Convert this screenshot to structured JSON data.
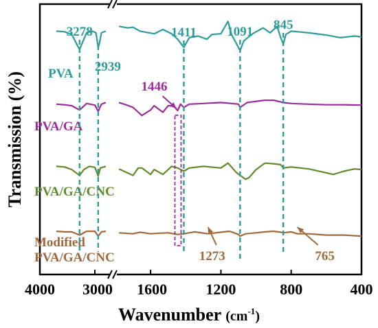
{
  "chart_data": {
    "type": "line",
    "title": "",
    "xlabel": "Wavenumber",
    "xlabel_unit": "(cm",
    "xlabel_unit_sup": "-1",
    "xlabel_unit_close": ")",
    "ylabel": "Transmission (%)",
    "x_axis_reversed": true,
    "x_axis_broken": true,
    "x_segments": [
      {
        "xlim": [
          4000,
          2700
        ]
      },
      {
        "xlim": [
          1800,
          400
        ]
      }
    ],
    "x_ticks": [
      {
        "value": 4000,
        "label": "4000"
      },
      {
        "value": 3000,
        "label": "3000"
      },
      {
        "value": 1600,
        "label": "1600"
      },
      {
        "value": 1200,
        "label": "1200"
      },
      {
        "value": 800,
        "label": "800"
      },
      {
        "value": 400,
        "label": "400"
      }
    ],
    "grid": false,
    "series": [
      {
        "name": "PVA",
        "color": "#2a9c98",
        "label_color": "#2a9c98",
        "baseline": 0.9,
        "points": [
          [
            3700,
            0
          ],
          [
            3550,
            -0.02
          ],
          [
            3420,
            -0.1
          ],
          [
            3300,
            -0.5
          ],
          [
            3278,
            -0.55
          ],
          [
            3250,
            -0.45
          ],
          [
            3150,
            -0.05
          ],
          [
            3050,
            0.0
          ],
          [
            2980,
            -0.05
          ],
          [
            2939,
            -0.5
          ],
          [
            2920,
            -0.4
          ],
          [
            2880,
            -0.05
          ],
          [
            2800,
            0.0
          ],
          [
            1780,
            0.15
          ],
          [
            1730,
            0.1
          ],
          [
            1700,
            0.12
          ],
          [
            1660,
            0.0
          ],
          [
            1580,
            -0.08
          ],
          [
            1530,
            0.05
          ],
          [
            1480,
            -0.08
          ],
          [
            1446,
            -0.25
          ],
          [
            1411,
            -0.5
          ],
          [
            1380,
            -0.2
          ],
          [
            1330,
            -0.15
          ],
          [
            1280,
            -0.25
          ],
          [
            1250,
            -0.1
          ],
          [
            1200,
            -0.08
          ],
          [
            1160,
            0.3
          ],
          [
            1140,
            -0.1
          ],
          [
            1110,
            -0.4
          ],
          [
            1091,
            -0.6
          ],
          [
            1070,
            -0.3
          ],
          [
            1020,
            -0.08
          ],
          [
            960,
            0.1
          ],
          [
            920,
            -0.05
          ],
          [
            880,
            0.15
          ],
          [
            860,
            -0.2
          ],
          [
            845,
            -0.4
          ],
          [
            830,
            -0.1
          ],
          [
            800,
            0.0
          ],
          [
            700,
            -0.05
          ],
          [
            600,
            -0.12
          ],
          [
            520,
            -0.2
          ],
          [
            440,
            -0.15
          ],
          [
            400,
            -0.18
          ]
        ]
      },
      {
        "name": "PVA/GA",
        "color": "#9b2a9b",
        "label_color": "#9b2a9b",
        "baseline": 0.63,
        "points": [
          [
            3700,
            0
          ],
          [
            3550,
            -0.02
          ],
          [
            3420,
            -0.05
          ],
          [
            3278,
            -0.18
          ],
          [
            3150,
            0.02
          ],
          [
            3000,
            -0.03
          ],
          [
            2939,
            -0.22
          ],
          [
            2880,
            0.0
          ],
          [
            2800,
            0.05
          ],
          [
            1780,
            0.05
          ],
          [
            1740,
            -0.02
          ],
          [
            1700,
            -0.1
          ],
          [
            1650,
            -0.35
          ],
          [
            1600,
            -0.18
          ],
          [
            1580,
            -0.05
          ],
          [
            1530,
            -0.25
          ],
          [
            1500,
            -0.05
          ],
          [
            1470,
            -0.05
          ],
          [
            1446,
            -0.2
          ],
          [
            1430,
            0.0
          ],
          [
            1411,
            -0.1
          ],
          [
            1380,
            0.0
          ],
          [
            1300,
            0.02
          ],
          [
            1200,
            0.05
          ],
          [
            1100,
            0.0
          ],
          [
            1091,
            -0.1
          ],
          [
            1050,
            0.05
          ],
          [
            950,
            0.12
          ],
          [
            900,
            0.12
          ],
          [
            845,
            0.05
          ],
          [
            800,
            0.02
          ],
          [
            700,
            0.0
          ],
          [
            600,
            -0.02
          ],
          [
            500,
            -0.02
          ],
          [
            400,
            -0.03
          ]
        ]
      },
      {
        "name": "PVA/GA/CNC",
        "color": "#5f8a2a",
        "label_color": "#5f8a2a",
        "baseline": 0.4,
        "points": [
          [
            3700,
            0
          ],
          [
            3550,
            -0.02
          ],
          [
            3420,
            -0.1
          ],
          [
            3300,
            -0.25
          ],
          [
            3278,
            -0.28
          ],
          [
            3200,
            -0.1
          ],
          [
            3100,
            0.0
          ],
          [
            3000,
            -0.03
          ],
          [
            2939,
            -0.3
          ],
          [
            2900,
            -0.05
          ],
          [
            2800,
            0.0
          ],
          [
            1780,
            -0.08
          ],
          [
            1700,
            -0.28
          ],
          [
            1670,
            -0.05
          ],
          [
            1650,
            -0.05
          ],
          [
            1600,
            -0.25
          ],
          [
            1580,
            -0.1
          ],
          [
            1530,
            -0.25
          ],
          [
            1480,
            0.0
          ],
          [
            1446,
            -0.05
          ],
          [
            1411,
            -0.15
          ],
          [
            1380,
            -0.05
          ],
          [
            1300,
            0.0
          ],
          [
            1200,
            -0.05
          ],
          [
            1160,
            0.1
          ],
          [
            1110,
            -0.2
          ],
          [
            1060,
            -0.4
          ],
          [
            1040,
            -0.35
          ],
          [
            1000,
            -0.1
          ],
          [
            950,
            0.1
          ],
          [
            900,
            0.08
          ],
          [
            860,
            0.05
          ],
          [
            845,
            -0.05
          ],
          [
            800,
            -0.02
          ],
          [
            700,
            -0.08
          ],
          [
            600,
            -0.2
          ],
          [
            560,
            -0.25
          ],
          [
            500,
            -0.15
          ],
          [
            440,
            -0.08
          ],
          [
            400,
            -0.1
          ]
        ]
      },
      {
        "name": "Modified PVA/GA/CNC",
        "label_line1": "Modified",
        "label_line2": "PVA/GA/CNC",
        "color": "#a0683a",
        "label_color": "#a0683a",
        "baseline": 0.16,
        "points": [
          [
            3700,
            0
          ],
          [
            3550,
            -0.02
          ],
          [
            3420,
            -0.02
          ],
          [
            3278,
            -0.12
          ],
          [
            3150,
            0.0
          ],
          [
            3000,
            0.0
          ],
          [
            2939,
            -0.15
          ],
          [
            2880,
            -0.02
          ],
          [
            2800,
            0.0
          ],
          [
            1780,
            -0.05
          ],
          [
            1700,
            -0.08
          ],
          [
            1660,
            -0.03
          ],
          [
            1600,
            -0.08
          ],
          [
            1550,
            -0.06
          ],
          [
            1500,
            -0.05
          ],
          [
            1446,
            -0.1
          ],
          [
            1411,
            -0.08
          ],
          [
            1350,
            -0.02
          ],
          [
            1273,
            -0.08
          ],
          [
            1200,
            -0.03
          ],
          [
            1150,
            0.0
          ],
          [
            1100,
            -0.1
          ],
          [
            1091,
            -0.15
          ],
          [
            1060,
            -0.08
          ],
          [
            1000,
            -0.05
          ],
          [
            950,
            -0.02
          ],
          [
            900,
            0.0
          ],
          [
            860,
            -0.03
          ],
          [
            845,
            -0.05
          ],
          [
            800,
            -0.02
          ],
          [
            765,
            -0.08
          ],
          [
            700,
            -0.08
          ],
          [
            600,
            -0.12
          ],
          [
            500,
            -0.12
          ],
          [
            400,
            -0.15
          ]
        ]
      }
    ],
    "peak_annotations": [
      {
        "label": "3278",
        "x": 3278,
        "color": "#2a9c98",
        "style": "dashed-line"
      },
      {
        "label": "2939",
        "x": 2939,
        "color": "#2a9c98",
        "style": "dashed-line"
      },
      {
        "label": "1411",
        "x": 1411,
        "color": "#2a9c98",
        "style": "dashed-line"
      },
      {
        "label": "1091",
        "x": 1091,
        "color": "#2a9c98",
        "style": "dashed-line"
      },
      {
        "label": "845",
        "x": 845,
        "color": "#2a9c98",
        "style": "dashed-line"
      },
      {
        "label": "1446",
        "x": 1446,
        "color": "#9b2a9b",
        "style": "dashed-box"
      },
      {
        "label": "1273",
        "x": 1273,
        "color": "#a0683a",
        "style": "arrow"
      },
      {
        "label": "765",
        "x": 765,
        "color": "#a0683a",
        "style": "arrow"
      }
    ]
  }
}
